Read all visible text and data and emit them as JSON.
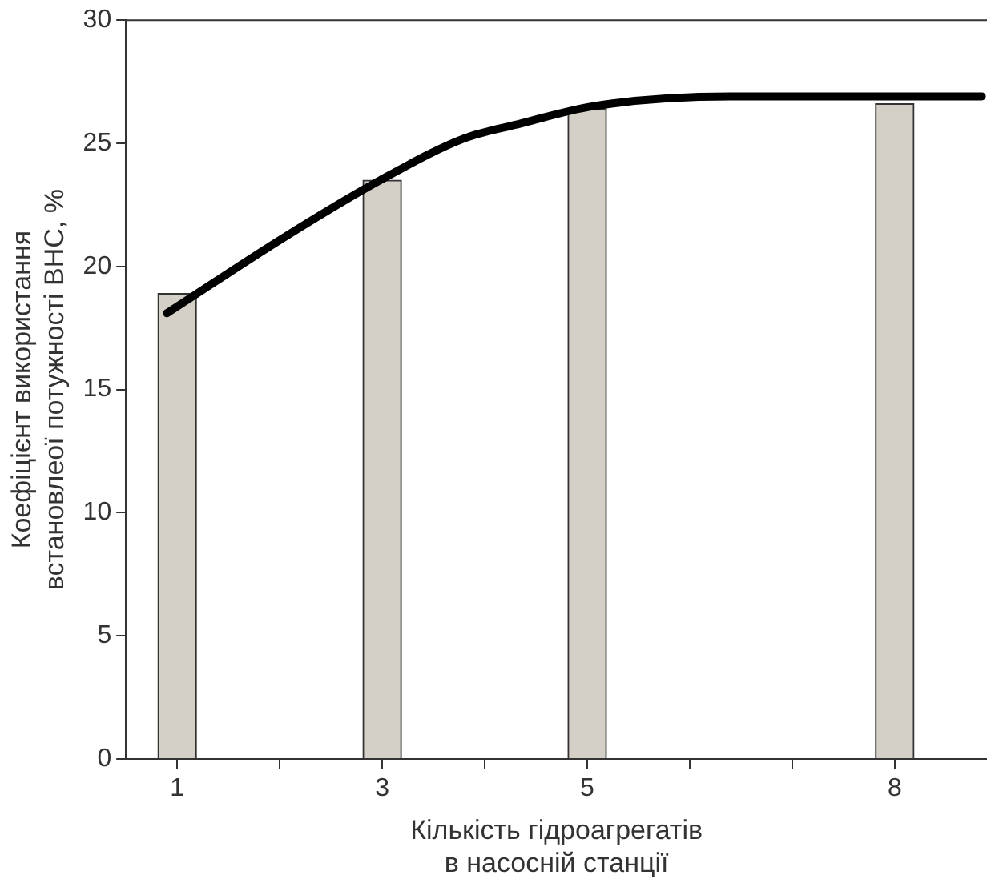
{
  "chart_data": {
    "type": "bar",
    "xlabel": "Кількість гідроагрегатів\nв насосній станції",
    "ylabel": "Коефіцієнт використання\nвстановлеої потужності ВНС, %",
    "x": [
      1,
      3,
      5,
      8
    ],
    "series": [
      {
        "color": "#d4d0c8",
        "values": [
          18.9,
          23.5,
          26.4,
          26.6
        ]
      },
      {
        "type": "line",
        "color": "#000000",
        "x": [
          0.9,
          2.05,
          2.98,
          3.8,
          4.35,
          5.05,
          6.4,
          8.85
        ],
        "values": [
          18.1,
          21.2,
          23.5,
          25.2,
          25.8,
          26.5,
          26.9,
          26.9
        ]
      }
    ],
    "xlim": [
      0.5,
      8.9
    ],
    "xticks": [
      1,
      {
        "value": 2,
        "label": null
      },
      3,
      {
        "value": 4,
        "label": null
      },
      5,
      {
        "value": 6,
        "label": null
      },
      {
        "value": 7,
        "label": null
      },
      8
    ],
    "ylim": [
      0,
      30
    ],
    "yticks": [
      0,
      5,
      10,
      15,
      20,
      25,
      30
    ],
    "grid": false,
    "legend": false,
    "marker": "none"
  }
}
